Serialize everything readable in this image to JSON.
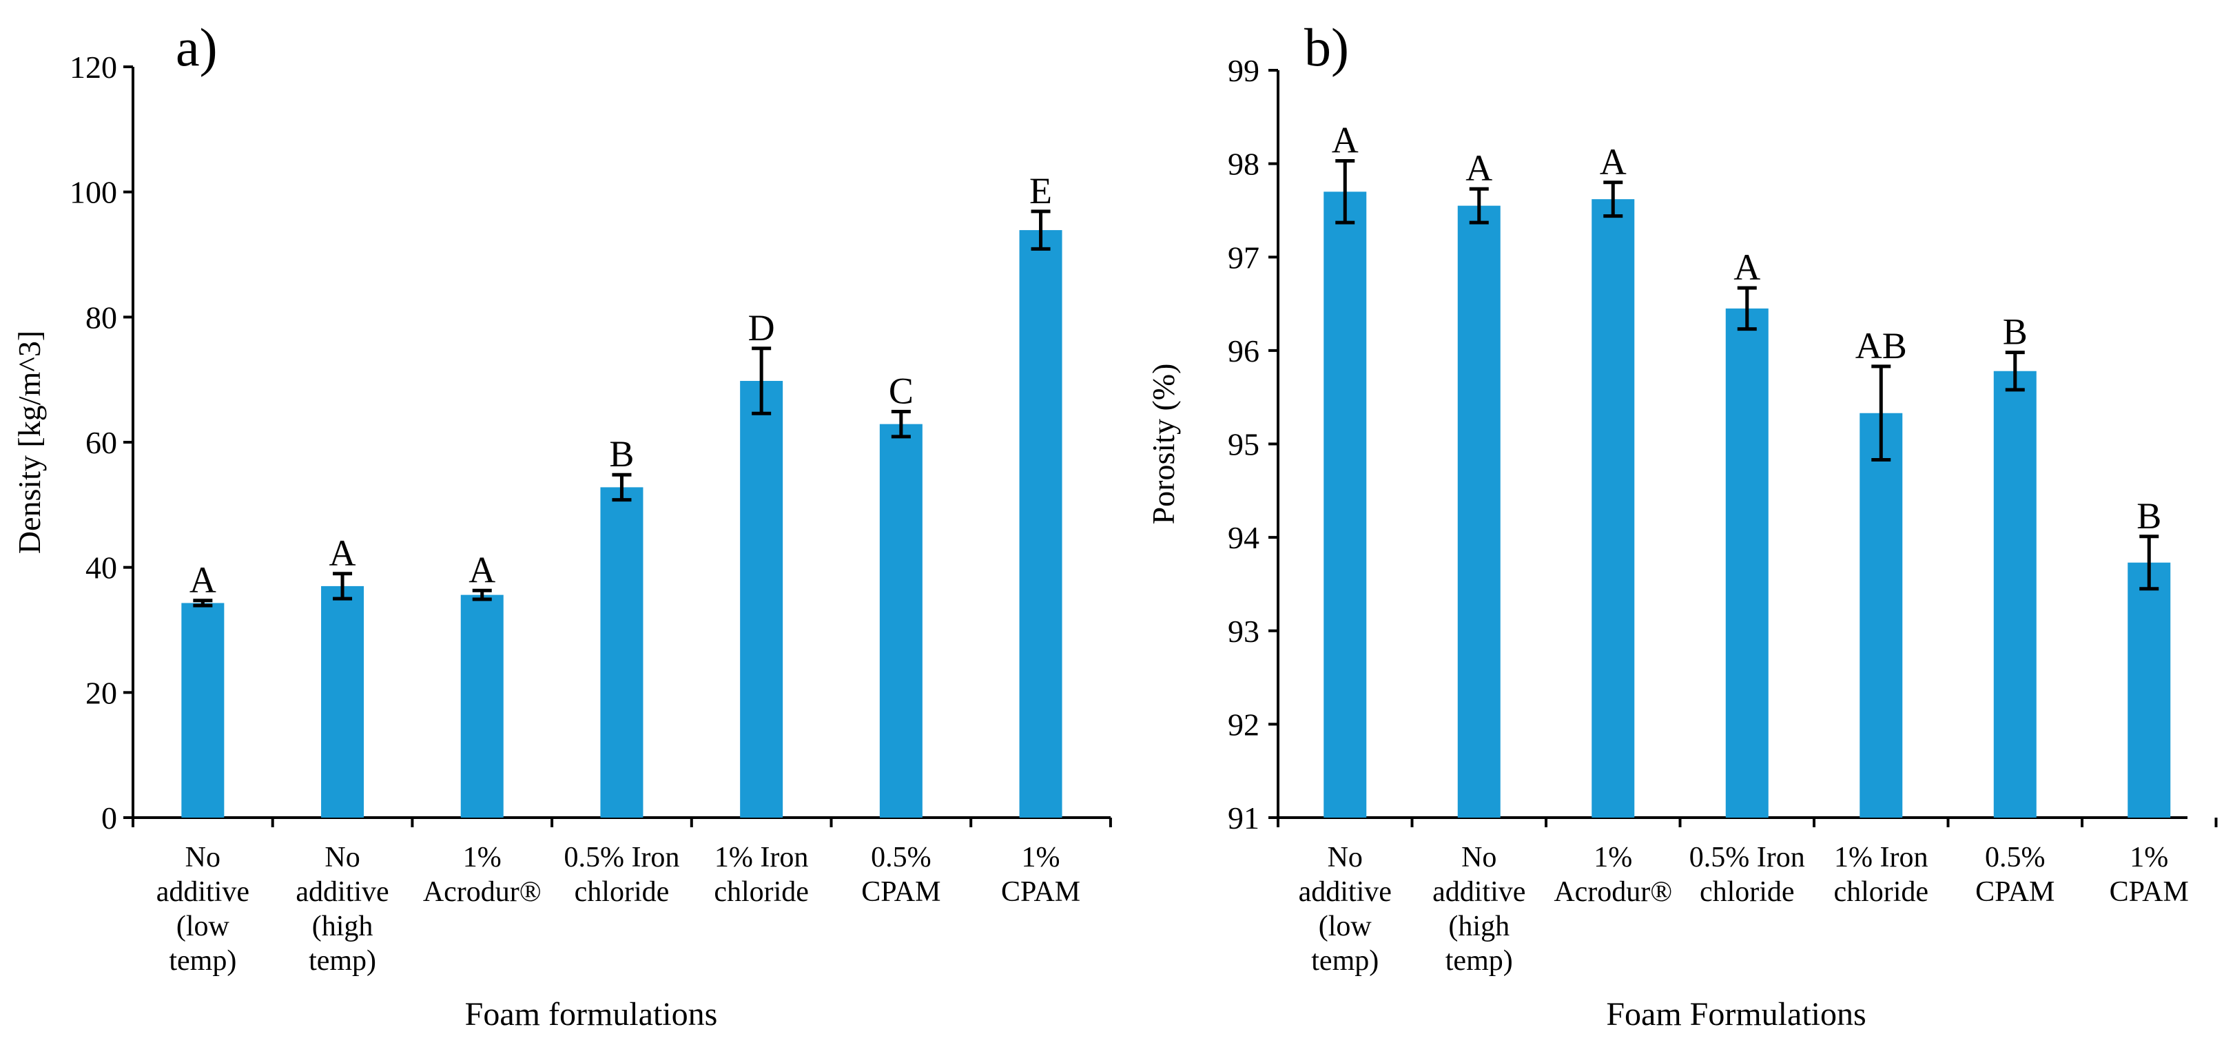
{
  "colors": {
    "bar": "#1a9ad6",
    "axis": "#000000"
  },
  "chart_data": [
    {
      "type": "bar",
      "panel_label": "a)",
      "title": "",
      "xlabel": "Foam formulations",
      "ylabel": "Density [kg/m^3]",
      "ylim": [
        0,
        120
      ],
      "yticks": [
        0,
        20,
        40,
        60,
        80,
        100,
        120
      ],
      "ytick_labels": [
        "0",
        "20",
        "40",
        "60",
        "80",
        "100",
        "120"
      ],
      "grid": false,
      "categories": [
        [
          "No",
          "additive",
          "(low",
          "temp)"
        ],
        [
          "No",
          "additive",
          "(high",
          "temp)"
        ],
        [
          "1%",
          "Acrodur®"
        ],
        [
          "0.5% Iron",
          "chloride"
        ],
        [
          "1% Iron",
          "chloride"
        ],
        [
          "0.5%",
          "CPAM"
        ],
        [
          "1%",
          "CPAM"
        ]
      ],
      "values": [
        34.3,
        37.0,
        35.6,
        52.8,
        69.8,
        62.9,
        93.9
      ],
      "errors": [
        0.4,
        2.0,
        0.7,
        2.0,
        5.2,
        2.0,
        3.0
      ],
      "significance": [
        "A",
        "A",
        "A",
        "B",
        "D",
        "C",
        "E"
      ]
    },
    {
      "type": "bar",
      "panel_label": "b)",
      "title": "",
      "xlabel": "Foam Formulations",
      "ylabel": "Porosity (%)",
      "ylim": [
        91,
        99
      ],
      "yticks": [
        91,
        92,
        93,
        94,
        95,
        96,
        97,
        98,
        99
      ],
      "ytick_labels": [
        "91",
        "92",
        "93",
        "94",
        "95",
        "96",
        "97",
        "98",
        "99"
      ],
      "grid": false,
      "categories": [
        [
          "No",
          "additive",
          "(low",
          "temp)"
        ],
        [
          "No",
          "additive",
          "(high",
          "temp)"
        ],
        [
          "1%",
          "Acrodur®"
        ],
        [
          "0.5% Iron",
          "chloride"
        ],
        [
          "1% Iron",
          "chloride"
        ],
        [
          "0.5%",
          "CPAM"
        ],
        [
          "1%",
          "CPAM"
        ]
      ],
      "values": [
        97.7,
        97.55,
        97.62,
        96.45,
        95.33,
        95.78,
        93.73
      ],
      "errors": [
        0.33,
        0.18,
        0.18,
        0.22,
        0.5,
        0.2,
        0.28
      ],
      "significance": [
        "A",
        "A",
        "A",
        "A",
        "AB",
        "B",
        "B"
      ]
    }
  ]
}
